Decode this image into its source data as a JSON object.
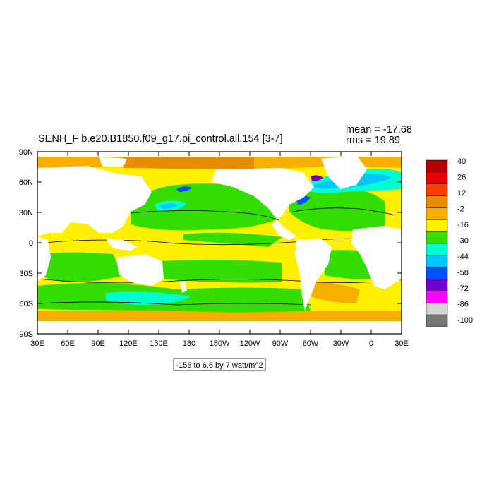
{
  "title": "SENH_F b.e20.B1850.f09_g17.pi_control.all.154 [3-7]",
  "stats": {
    "mean": "mean = -17.68",
    "rms": "rms = 19.89"
  },
  "contour_info": "-156 to 6.6 by 7 watt/m^2",
  "axes": {
    "x_ticks": [
      "30E",
      "60E",
      "90E",
      "120E",
      "150E",
      "180",
      "150W",
      "120W",
      "90W",
      "60W",
      "30W",
      "0",
      "30E"
    ],
    "y_ticks": [
      "90N",
      "60N",
      "30N",
      "0",
      "30S",
      "60S",
      "90S"
    ]
  },
  "colorbar": {
    "labels": [
      "40",
      "26",
      "12",
      "-2",
      "-16",
      "-30",
      "-44",
      "-58",
      "-72",
      "-86",
      "-100"
    ],
    "colors": [
      "#b40000",
      "#e60000",
      "#ff3c00",
      "#e88c00",
      "#f7b000",
      "#fff000",
      "#33dd00",
      "#00ffd0",
      "#00c8ff",
      "#0050ff",
      "#7000d0",
      "#ff00ff",
      "#d4d4d4",
      "#777777"
    ]
  },
  "palette": {
    "land": "#ffffff",
    "ocean_base": "#fff000",
    "green": "#33dd00",
    "orange": "#f7b000",
    "dark_orange": "#e88c00",
    "cyan": "#00ffd0",
    "sky": "#00c8ff",
    "blue": "#0050ff",
    "purple": "#7000d0"
  }
}
